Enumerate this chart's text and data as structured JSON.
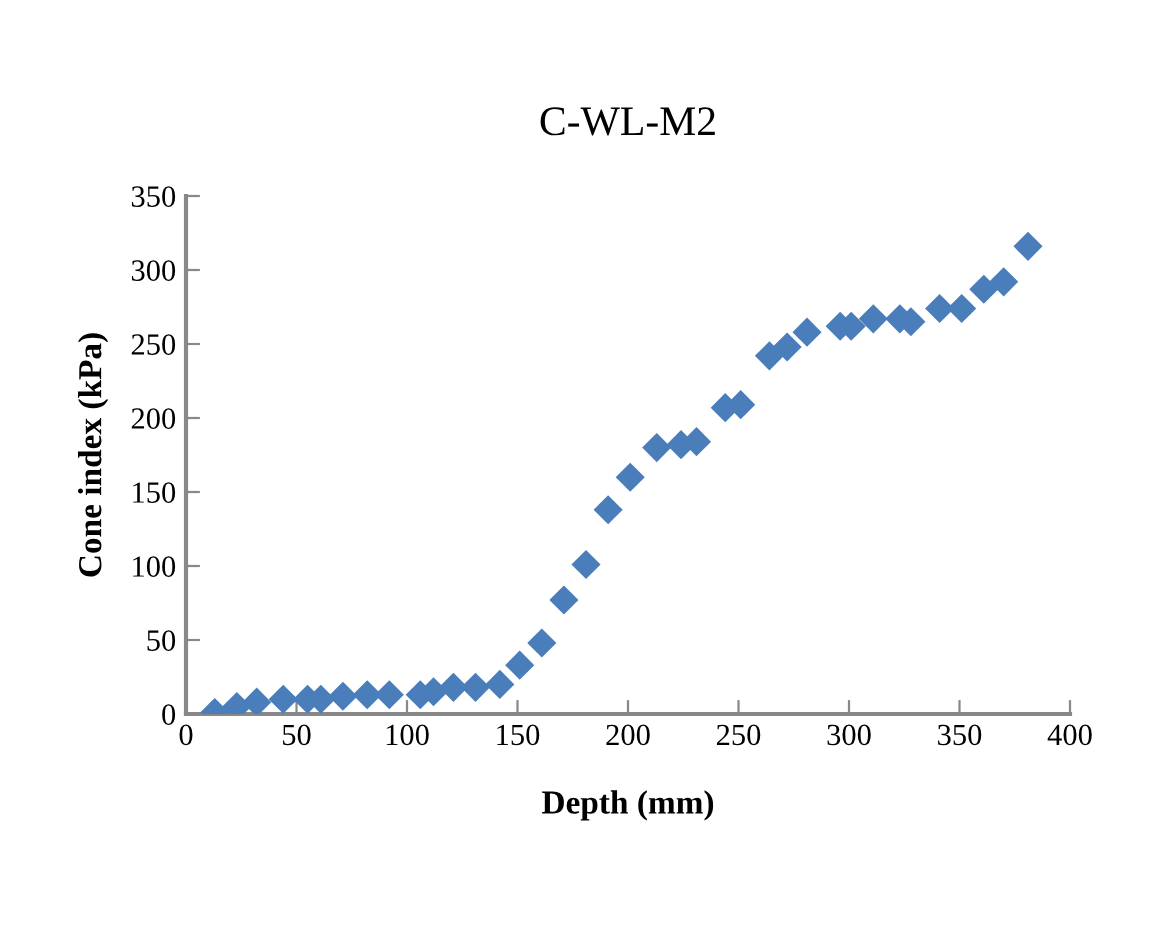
{
  "chart_data": {
    "type": "scatter",
    "title": "C-WL-M2",
    "xlabel": "Depth (mm)",
    "ylabel": "Cone index (kPa)",
    "x": [
      13,
      23,
      32,
      44,
      55,
      61,
      71,
      82,
      92,
      106,
      112,
      121,
      131,
      142,
      151,
      161,
      171,
      181,
      191,
      201,
      213,
      224,
      231,
      244,
      251,
      264,
      272,
      281,
      296,
      301,
      311,
      323,
      328,
      341,
      351,
      361,
      370,
      381
    ],
    "series": [
      {
        "color": "#4a7ebb",
        "values": [
          1,
          5,
          8,
          10,
          10,
          10,
          12,
          13,
          13,
          13,
          15,
          18,
          18,
          20,
          33,
          48,
          77,
          101,
          138,
          160,
          180,
          182,
          184,
          207,
          209,
          242,
          248,
          258,
          262,
          262,
          267,
          267,
          265,
          274,
          274,
          287,
          292,
          316
        ]
      }
    ],
    "marker": "diamond",
    "grid": false,
    "legend": false,
    "xlim": [
      0,
      400
    ],
    "xticks": [
      0,
      50,
      100,
      150,
      200,
      250,
      300,
      350,
      400
    ],
    "ylim": [
      0,
      350
    ],
    "yticks": [
      0,
      50,
      100,
      150,
      200,
      250,
      300,
      350
    ]
  }
}
